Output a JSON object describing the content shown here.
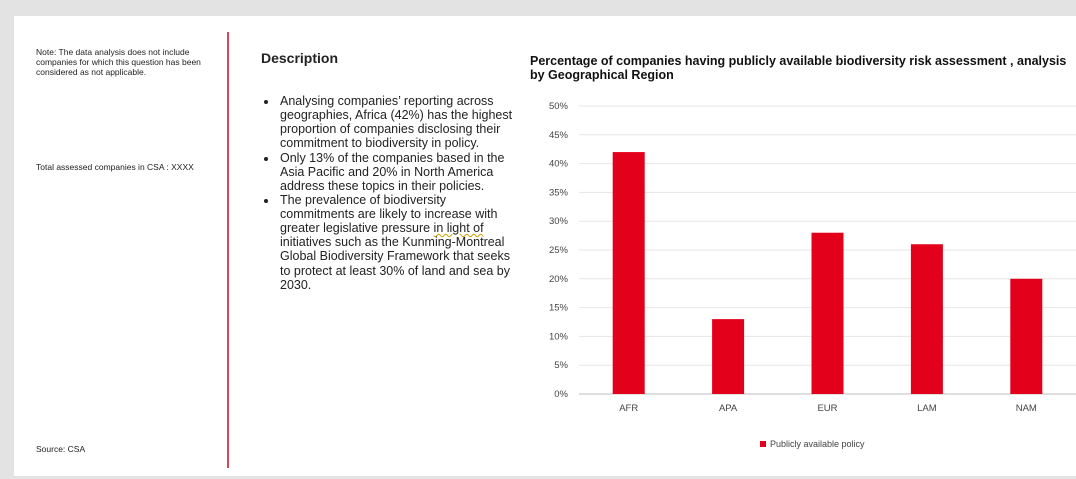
{
  "left_panel": {
    "note": "Note: The data analysis does not include companies for which this question has been considered as not applicable.",
    "total": "Total assessed companies in CSA : XXXX",
    "source": "Source: CSA"
  },
  "description": {
    "title": "Description",
    "bullets": [
      {
        "text": "Analysing companies’ reporting across geographies, Africa (42%) has the highest proportion of companies disclosing their commitment to biodiversity in policy."
      },
      {
        "text": "Only 13% of the companies based in the Asia Pacific and 20% in North America address these topics in their policies."
      },
      {
        "pre": "The prevalence of biodiversity commitments are likely to increase with greater legislative pressure ",
        "flagged": "in light of",
        "post": " initiatives such as the Kunming-Montreal Global Biodiversity Framework that seeks to protect at least 30% of land and sea by 2030."
      }
    ]
  },
  "chart_data": {
    "type": "bar",
    "title_line1": "Percentage of companies having publicly available biodiversity risk assessment , analysis",
    "title_line2": "by Geographical Region",
    "categories": [
      "AFR",
      "APA",
      "EUR",
      "LAM",
      "NAM"
    ],
    "series": [
      {
        "name": "Publicly available policy",
        "values": [
          0.42,
          0.13,
          0.28,
          0.26,
          0.2
        ],
        "color": "#e3001b"
      }
    ],
    "ylim": [
      0,
      0.5
    ],
    "yticks": [
      "0%",
      "5%",
      "10%",
      "15%",
      "20%",
      "25%",
      "30%",
      "35%",
      "40%",
      "45%",
      "50%"
    ],
    "grid": true,
    "legend": "bottom"
  }
}
